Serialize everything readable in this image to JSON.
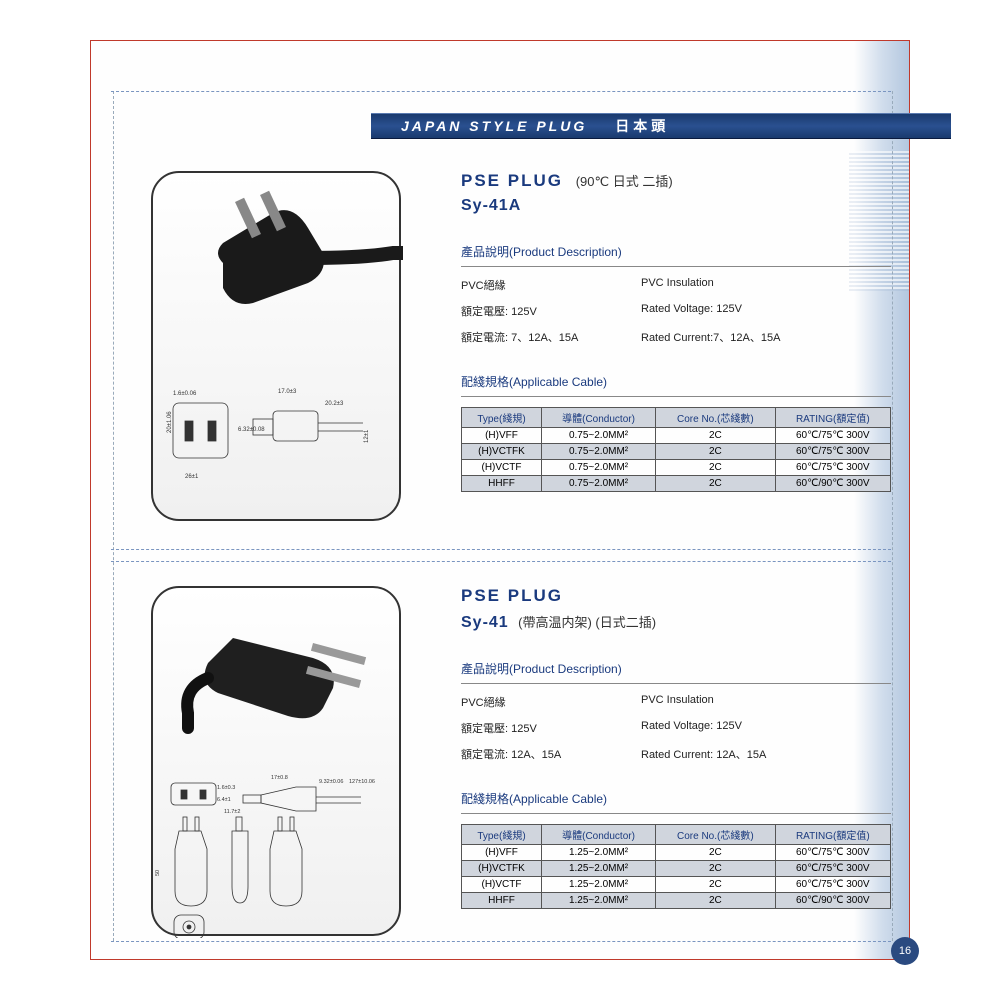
{
  "header": {
    "en": "JAPAN STYLE PLUG",
    "cn": "日本頭"
  },
  "page_number": "16",
  "products": [
    {
      "title": "PSE PLUG",
      "title_sub": "(90℃ 日式 二插)",
      "model": "Sy-41A",
      "desc_title": "產品說明(Product Description)",
      "descriptions": [
        {
          "l": "PVC絕緣",
          "r": "PVC Insulation"
        },
        {
          "l": "額定電壓: 125V",
          "r": "Rated Voltage: 125V"
        },
        {
          "l": "額定電流: 7、12A、15A",
          "r": "Rated Current:7、12A、15A"
        }
      ],
      "cable_title": "配綫規格(Applicable Cable)",
      "table": {
        "headers": [
          "Type(綫規)",
          "導體(Conductor)",
          "Core No.(芯綫數)",
          "RATING(額定值)"
        ],
        "rows": [
          {
            "cells": [
              "(H)VFF",
              "0.75~2.0MM²",
              "2C",
              "60℃/75℃  300V"
            ],
            "shade": false
          },
          {
            "cells": [
              "(H)VCTFK",
              "0.75~2.0MM²",
              "2C",
              "60℃/75℃  300V"
            ],
            "shade": true
          },
          {
            "cells": [
              "(H)VCTF",
              "0.75~2.0MM²",
              "2C",
              "60℃/75℃  300V"
            ],
            "shade": false
          },
          {
            "cells": [
              "HHFF",
              "0.75~2.0MM²",
              "2C",
              "60℃/90℃  300V"
            ],
            "shade": true
          }
        ]
      }
    },
    {
      "title": "PSE PLUG",
      "title_sub": "",
      "model": "Sy-41",
      "model_sub": "(帶高温内架)    (日式二插)",
      "desc_title": "產品說明(Product Description)",
      "descriptions": [
        {
          "l": "PVC絕緣",
          "r": "PVC Insulation"
        },
        {
          "l": "額定電壓: 125V",
          "r": "Rated Voltage: 125V"
        },
        {
          "l": "額定電流: 12A、15A",
          "r": "Rated Current: 12A、15A"
        }
      ],
      "cable_title": "配綫規格(Applicable Cable)",
      "table": {
        "headers": [
          "Type(綫規)",
          "導體(Conductor)",
          "Core No.(芯綫數)",
          "RATING(額定值)"
        ],
        "rows": [
          {
            "cells": [
              "(H)VFF",
              "1.25~2.0MM²",
              "2C",
              "60℃/75℃  300V"
            ],
            "shade": false
          },
          {
            "cells": [
              "(H)VCTFK",
              "1.25~2.0MM²",
              "2C",
              "60℃/75℃  300V"
            ],
            "shade": true
          },
          {
            "cells": [
              "(H)VCTF",
              "1.25~2.0MM²",
              "2C",
              "60℃/75℃  300V"
            ],
            "shade": false
          },
          {
            "cells": [
              "HHFF",
              "1.25~2.0MM²",
              "2C",
              "60℃/90℃  300V"
            ],
            "shade": true
          }
        ]
      }
    }
  ]
}
